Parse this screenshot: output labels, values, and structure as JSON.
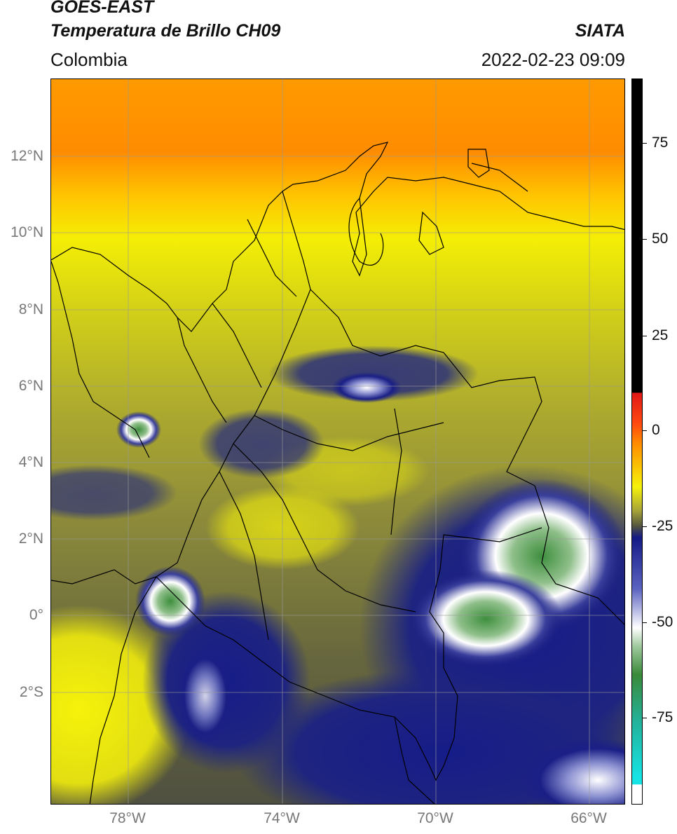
{
  "header": {
    "satellite": "GOES-EAST",
    "product": "Temperatura de Brillo CH09",
    "region": "Colombia",
    "agency": "SIATA",
    "timestamp": "2022-02-23 09:09"
  },
  "map": {
    "lat_labels": [
      "12°N",
      "10°N",
      "8°N",
      "6°N",
      "4°N",
      "2°N",
      "0°",
      "2°S"
    ],
    "lon_labels": [
      "78°W",
      "74°W",
      "70°W",
      "66°W"
    ],
    "extent_deg": {
      "lon_min": -80,
      "lon_max": -65,
      "lat_min": -5,
      "lat_max": 14
    }
  },
  "colorbar": {
    "ticks": [
      "75",
      "50",
      "25",
      "0",
      "-25",
      "-50",
      "-75"
    ],
    "tick_values": [
      75,
      50,
      25,
      0,
      -25,
      -50,
      -75
    ],
    "range": [
      -95,
      90
    ],
    "colors": {
      "black": "#000000",
      "red": "#e01818",
      "orange": "#ff8c00",
      "yellow": "#f6f20a",
      "olive": "#a9a638",
      "grey_olive": "#55563e",
      "navy": "#141a86",
      "white": "#ffffff",
      "green": "#3a8a3a",
      "teal": "#23b29a",
      "cyan": "#16e3e3"
    }
  }
}
